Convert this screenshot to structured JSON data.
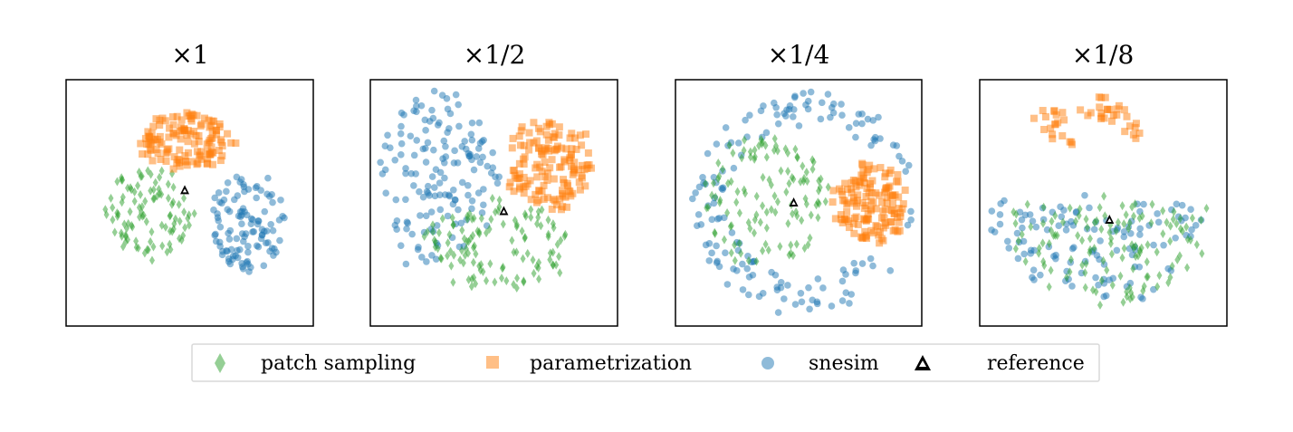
{
  "figure": {
    "legend": {
      "items": [
        {
          "label": "patch sampling",
          "marker": "diamond",
          "color": "#2ca02c"
        },
        {
          "label": "parametrization",
          "marker": "square",
          "color": "#ff7f0e"
        },
        {
          "label": "snesim",
          "marker": "circle",
          "color": "#1f77b4"
        },
        {
          "label": "reference",
          "marker": "triangle",
          "color": "#000000"
        }
      ],
      "position": "bottom-center"
    }
  },
  "chart_data": [
    {
      "type": "scatter",
      "title": "×1",
      "xlabel": "",
      "ylabel": "",
      "xlim": [
        -1,
        1
      ],
      "ylim": [
        -1,
        1
      ],
      "axes_ticks": false,
      "grid": false,
      "series": [
        {
          "name": "patch sampling",
          "marker": "diamond",
          "color": "#2ca02c",
          "alpha": 0.5,
          "clusters": [
            {
              "cx": -0.33,
              "cy": -0.08,
              "rx": 0.35,
              "ry": 0.36,
              "n": 100
            }
          ]
        },
        {
          "name": "parametrization",
          "marker": "square",
          "color": "#ff7f0e",
          "alpha": 0.5,
          "clusters": [
            {
              "cx": -0.03,
              "cy": 0.5,
              "rx": 0.38,
              "ry": 0.22,
              "n": 130
            }
          ]
        },
        {
          "name": "snesim",
          "marker": "circle",
          "color": "#1f77b4",
          "alpha": 0.5,
          "clusters": [
            {
              "cx": 0.48,
              "cy": -0.15,
              "rx": 0.34,
              "ry": 0.4,
              "n": 110
            }
          ]
        },
        {
          "name": "reference",
          "marker": "triangle",
          "color": "#000000",
          "alpha": 1,
          "points": [
            [
              -0.04,
              0.1
            ]
          ]
        }
      ]
    },
    {
      "type": "scatter",
      "title": "×1/2",
      "xlabel": "",
      "ylabel": "",
      "xlim": [
        -1,
        1
      ],
      "ylim": [
        -1,
        1
      ],
      "axes_ticks": false,
      "grid": false,
      "series": [
        {
          "name": "patch sampling",
          "marker": "diamond",
          "color": "#2ca02c",
          "alpha": 0.5,
          "clusters": [
            {
              "cx": 0.05,
              "cy": -0.35,
              "rx": 0.62,
              "ry": 0.36,
              "n": 120
            }
          ]
        },
        {
          "name": "parametrization",
          "marker": "square",
          "color": "#ff7f0e",
          "alpha": 0.5,
          "clusters": [
            {
              "cx": 0.45,
              "cy": 0.32,
              "rx": 0.35,
              "ry": 0.36,
              "n": 140
            }
          ]
        },
        {
          "name": "snesim",
          "marker": "circle",
          "color": "#1f77b4",
          "alpha": 0.5,
          "clusters": [
            {
              "cx": -0.45,
              "cy": 0.18,
              "rx": 0.48,
              "ry": 0.72,
              "n": 150
            }
          ]
        },
        {
          "name": "reference",
          "marker": "triangle",
          "color": "#000000",
          "alpha": 1,
          "points": [
            [
              0.08,
              -0.07
            ]
          ]
        }
      ]
    },
    {
      "type": "scatter",
      "title": "×1/4",
      "xlabel": "",
      "ylabel": "",
      "xlim": [
        -1,
        1
      ],
      "ylim": [
        -1,
        1
      ],
      "axes_ticks": false,
      "grid": false,
      "series": [
        {
          "name": "patch sampling",
          "marker": "diamond",
          "color": "#2ca02c",
          "alpha": 0.5,
          "clusters": [
            {
              "cx": -0.27,
              "cy": 0.03,
              "rx": 0.5,
              "ry": 0.55,
              "n": 120
            }
          ]
        },
        {
          "name": "parametrization",
          "marker": "square",
          "color": "#ff7f0e",
          "alpha": 0.5,
          "clusters": [
            {
              "cx": 0.58,
              "cy": 0.0,
              "rx": 0.3,
              "ry": 0.32,
              "n": 140
            }
          ]
        },
        {
          "name": "snesim",
          "marker": "circle",
          "color": "#1f77b4",
          "alpha": 0.5,
          "ring": {
            "cx": 0.05,
            "cy": 0.0,
            "r_inner": 0.62,
            "r_outer": 0.92,
            "n": 150
          }
        },
        {
          "name": "reference",
          "marker": "triangle",
          "color": "#000000",
          "alpha": 1,
          "points": [
            [
              -0.04,
              0.0
            ]
          ]
        }
      ]
    },
    {
      "type": "scatter",
      "title": "×1/8",
      "xlabel": "",
      "ylabel": "",
      "xlim": [
        -1,
        1
      ],
      "ylim": [
        -1,
        1
      ],
      "axes_ticks": false,
      "grid": false,
      "series": [
        {
          "name": "patch sampling",
          "marker": "diamond",
          "color": "#2ca02c",
          "alpha": 0.5,
          "half_disk": {
            "cx": 0.05,
            "cy": -0.05,
            "r": 0.85,
            "n": 130
          }
        },
        {
          "name": "parametrization",
          "marker": "square",
          "color": "#ff7f0e",
          "alpha": 0.5,
          "clusters": [
            {
              "cx": -0.42,
              "cy": 0.66,
              "rx": 0.12,
              "ry": 0.14,
              "n": 15
            },
            {
              "cx": 0.0,
              "cy": 0.78,
              "rx": 0.18,
              "ry": 0.1,
              "n": 20
            },
            {
              "cx": 0.25,
              "cy": 0.6,
              "rx": 0.06,
              "ry": 0.1,
              "n": 8
            },
            {
              "cx": -0.28,
              "cy": 0.5,
              "rx": 0.05,
              "ry": 0.05,
              "n": 4
            }
          ]
        },
        {
          "name": "snesim",
          "marker": "circle",
          "color": "#1f77b4",
          "alpha": 0.5,
          "half_disk": {
            "cx": -0.05,
            "cy": -0.05,
            "r": 0.88,
            "n": 120
          }
        },
        {
          "name": "reference",
          "marker": "triangle",
          "color": "#000000",
          "alpha": 1,
          "points": [
            [
              0.05,
              -0.14
            ]
          ]
        }
      ]
    }
  ]
}
